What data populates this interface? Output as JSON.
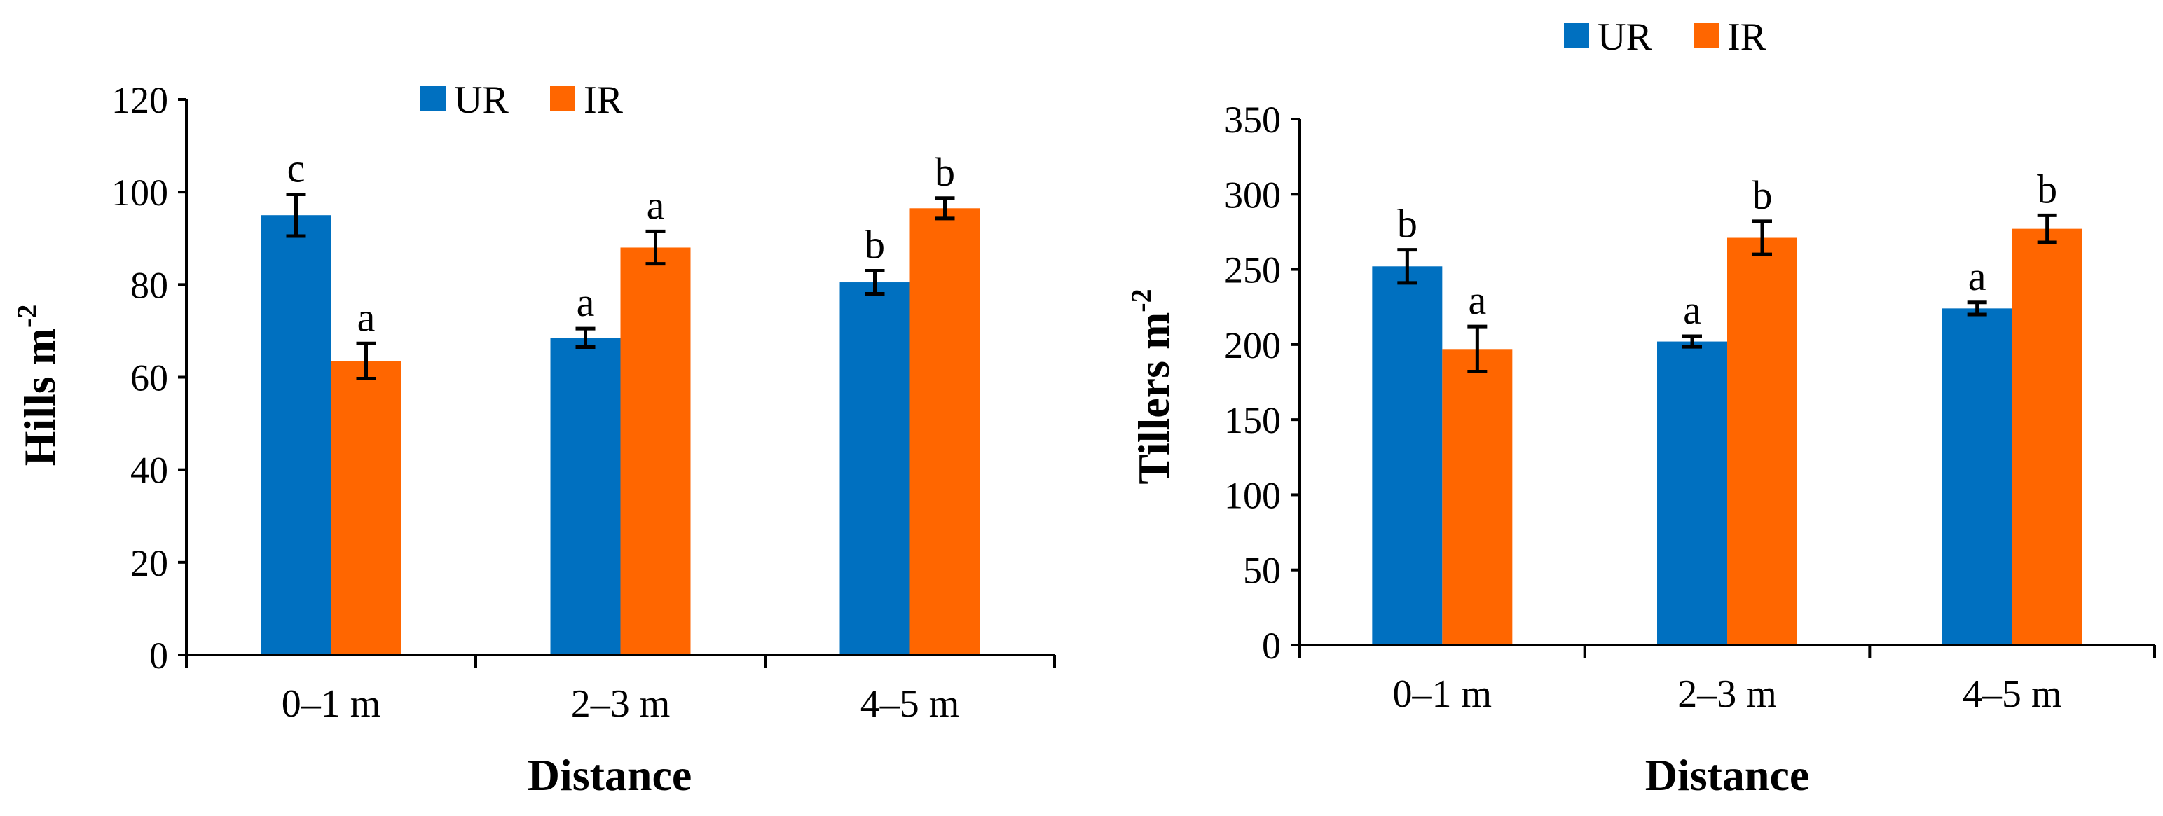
{
  "chart_data": [
    {
      "type": "bar",
      "categories": [
        "0–1 m",
        "2–3 m",
        "4–5 m"
      ],
      "series": [
        {
          "name": "UR",
          "color": "#0070C0",
          "values": [
            95,
            68.5,
            80.5
          ],
          "errors": [
            4.5,
            2,
            2.5
          ],
          "letters": [
            "c",
            "a",
            "b"
          ]
        },
        {
          "name": "IR",
          "color": "#FF6600",
          "values": [
            63.5,
            88,
            96.5
          ],
          "errors": [
            3.8,
            3.5,
            2.2
          ],
          "letters": [
            "a",
            "a",
            "b"
          ]
        }
      ],
      "xlabel": "Distance",
      "ylabel_main": "Hills m",
      "ylabel_sup": "-2",
      "ylim": [
        0,
        120
      ],
      "ytick_step": 20,
      "yticks": [
        "0",
        "20",
        "40",
        "60",
        "80",
        "100",
        "120"
      ],
      "legend": [
        "UR",
        "IR"
      ]
    },
    {
      "type": "bar",
      "categories": [
        "0–1 m",
        "2–3 m",
        "4–5 m"
      ],
      "series": [
        {
          "name": "UR",
          "color": "#0070C0",
          "values": [
            252,
            202,
            224
          ],
          "errors": [
            11,
            3.5,
            4
          ],
          "letters": [
            "b",
            "a",
            "a"
          ]
        },
        {
          "name": "IR",
          "color": "#FF6600",
          "values": [
            197,
            271,
            277
          ],
          "errors": [
            15,
            11,
            9
          ],
          "letters": [
            "a",
            "b",
            "b"
          ]
        }
      ],
      "xlabel": "Distance",
      "ylabel_main": "Tillers m",
      "ylabel_sup": "-2",
      "ylim": [
        0,
        350
      ],
      "ytick_step": 50,
      "yticks": [
        "0",
        "50",
        "100",
        "150",
        "200",
        "250",
        "300",
        "350"
      ],
      "legend": [
        "UR",
        "IR"
      ]
    }
  ]
}
